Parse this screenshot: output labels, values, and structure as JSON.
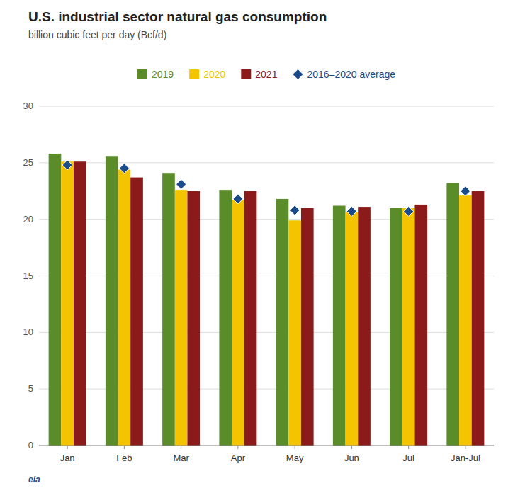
{
  "chart_data": {
    "type": "bar",
    "title": "U.S. industrial sector natural gas consumption",
    "subtitle": "billion cubic feet per day (Bcf/d)",
    "annotation": "eia",
    "categories": [
      "Jan",
      "Feb",
      "Mar",
      "Apr",
      "May",
      "Jun",
      "Jul",
      "Jan-Jul"
    ],
    "series": [
      {
        "name": "2019",
        "type": "bar",
        "color": "#5B8C2A",
        "values": [
          25.8,
          25.6,
          24.1,
          22.6,
          21.8,
          21.2,
          21.0,
          23.2
        ]
      },
      {
        "name": "2020",
        "type": "bar",
        "color": "#F5C400",
        "values": [
          25.1,
          24.4,
          22.6,
          21.7,
          19.9,
          20.6,
          21.0,
          22.1
        ]
      },
      {
        "name": "2021",
        "type": "bar",
        "color": "#8B1A1A",
        "values": [
          25.1,
          23.7,
          22.5,
          22.5,
          21.0,
          21.1,
          21.3,
          22.5
        ]
      },
      {
        "name": "2016–2020 average",
        "type": "scatter",
        "marker": "diamond",
        "color": "#1B4B8A",
        "values": [
          24.8,
          24.5,
          23.1,
          21.8,
          20.8,
          20.7,
          20.7,
          22.5
        ]
      }
    ],
    "ylim": [
      0,
      30
    ],
    "yticks": [
      0,
      5,
      10,
      15,
      20,
      25,
      30
    ],
    "grid": true,
    "legend": "top"
  }
}
